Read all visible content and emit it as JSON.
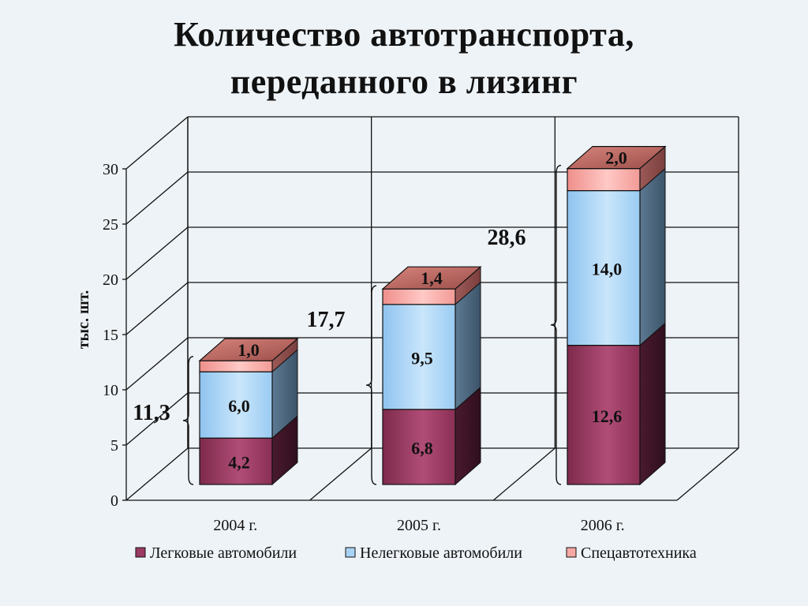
{
  "title_line1": "Количество автотранспорта,",
  "title_line2": "переданного в лизинг",
  "chart_data": {
    "type": "bar",
    "stacked": true,
    "three_d": true,
    "categories": [
      "2004 г.",
      "2005 г.",
      "2006 г."
    ],
    "series": [
      {
        "name": "Легковые автомобили",
        "values": [
          4.2,
          6.8,
          12.6
        ],
        "labels": [
          "4,2",
          "6,8",
          "12,6"
        ],
        "color": "#9b3a62"
      },
      {
        "name": "Нелегковые автомобили",
        "values": [
          6.0,
          9.5,
          14.0
        ],
        "labels": [
          "6,0",
          "9,5",
          "14,0"
        ],
        "color": "#a9d3f5"
      },
      {
        "name": "Спецавтотехника",
        "values": [
          1.0,
          1.4,
          2.0
        ],
        "labels": [
          "1,0",
          "1,4",
          "2,0"
        ],
        "color": "#f6a9a4"
      }
    ],
    "totals": [
      11.3,
      17.7,
      28.6
    ],
    "total_labels": [
      "11,3",
      "17,7",
      "28,6"
    ],
    "ylabel": "тыс. шт.",
    "ylim": [
      0,
      30
    ],
    "yticks": [
      0,
      5,
      10,
      15,
      20,
      25,
      30
    ],
    "grid": true,
    "legend_position": "bottom"
  }
}
